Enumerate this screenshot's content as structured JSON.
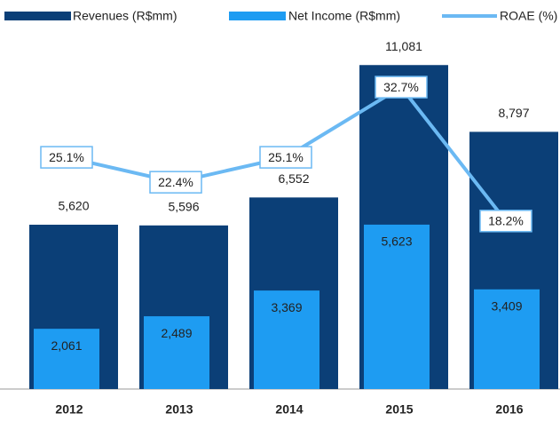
{
  "chart_data": {
    "type": "bar",
    "categories": [
      "2012",
      "2013",
      "2014",
      "2015",
      "2016"
    ],
    "series": [
      {
        "name": "Revenues (R$mm)",
        "type": "bar",
        "color": "#0b3f77",
        "values": [
          5620,
          5596,
          6552,
          11081,
          8797
        ],
        "value_labels": [
          "5,620",
          "5,596",
          "6,552",
          "11,081",
          "8,797"
        ]
      },
      {
        "name": "Net Income (R$mm)",
        "type": "bar",
        "color": "#1e9cf2",
        "values": [
          2061,
          2489,
          3369,
          5623,
          3409
        ],
        "value_labels": [
          "2,061",
          "2,489",
          "3,369",
          "5,623",
          "3,409"
        ]
      },
      {
        "name": "ROAE (%)",
        "type": "line",
        "axis": "y2",
        "color": "#6bb9f3",
        "values": [
          25.1,
          22.4,
          25.1,
          32.7,
          18.2
        ],
        "value_labels": [
          "25.1%",
          "22.4%",
          "25.1%",
          "32.7%",
          "18.2%"
        ]
      }
    ],
    "ylim": [
      0,
      12000
    ],
    "y2lim": [
      0,
      38
    ],
    "legend": "top"
  }
}
